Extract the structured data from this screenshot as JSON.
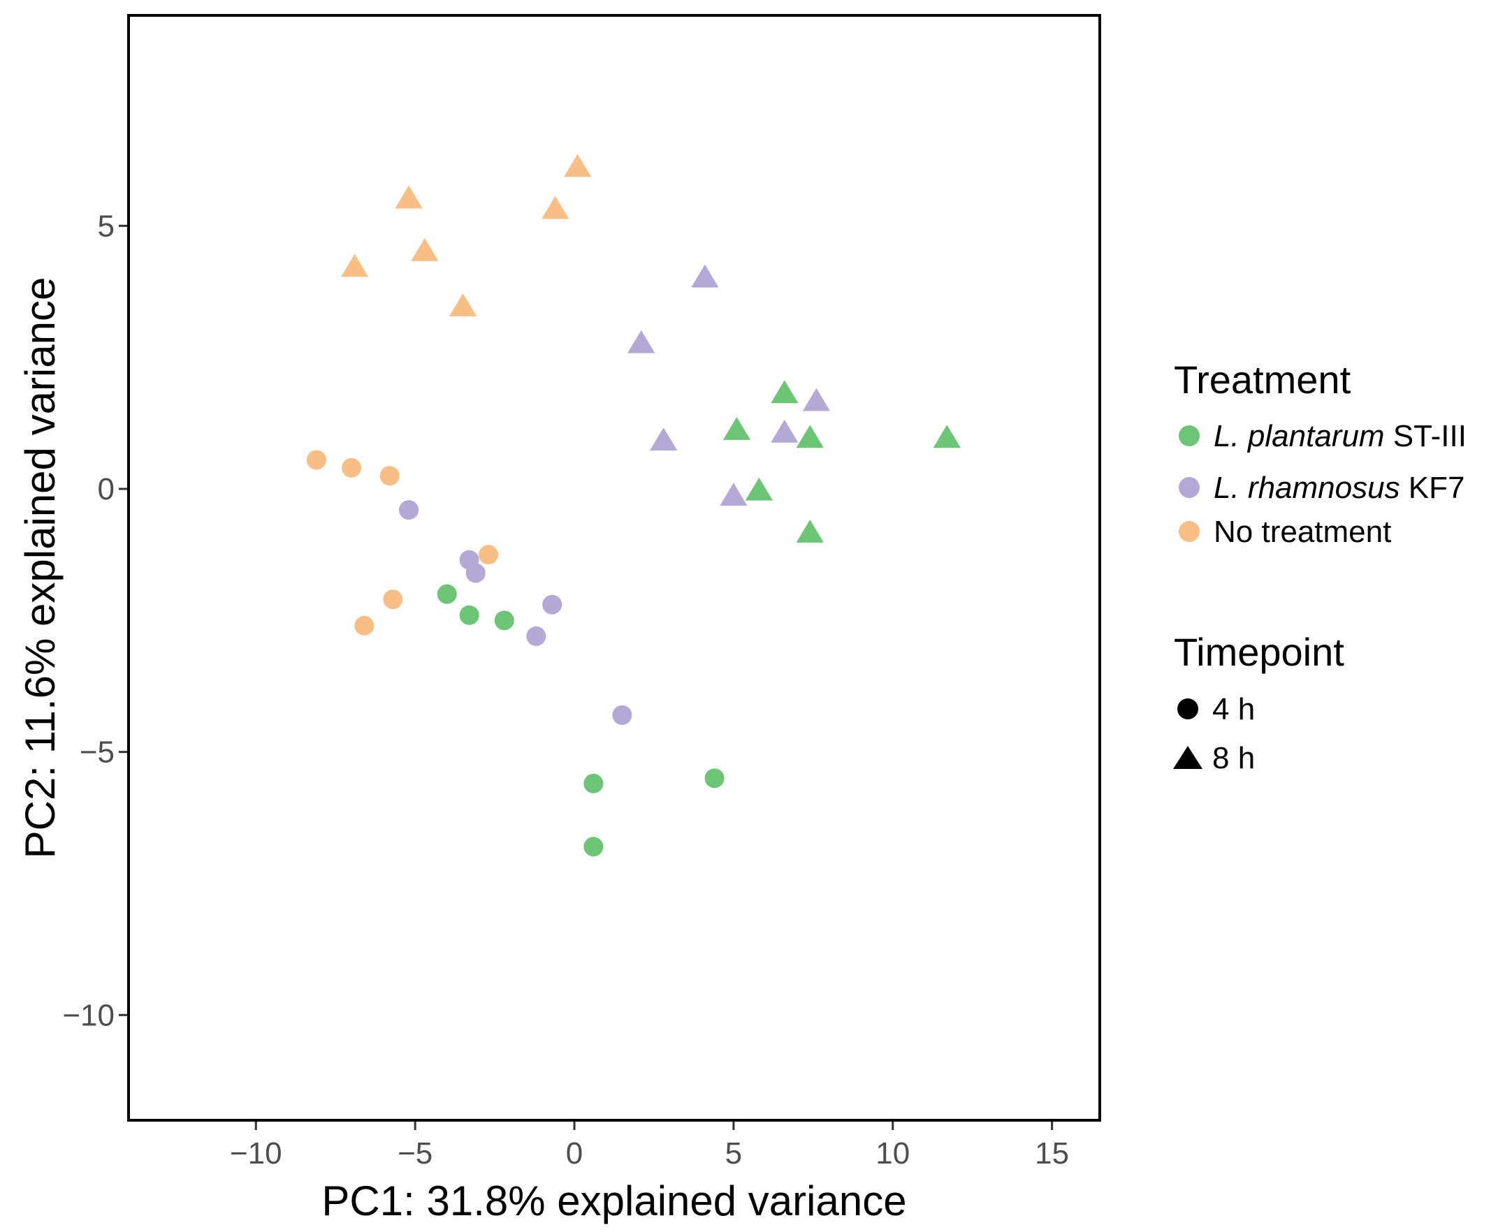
{
  "chart_data": {
    "type": "scatter",
    "title": "",
    "xlabel": "PC1: 31.8% explained variance",
    "ylabel": "PC2: 11.6% explained variance",
    "xlim": [
      -14,
      16.5
    ],
    "ylim": [
      -12,
      9
    ],
    "xticks": [
      -10,
      -5,
      0,
      5,
      10,
      15
    ],
    "xtick_labels": [
      "−10",
      "−5",
      "0",
      "5",
      "10",
      "15"
    ],
    "yticks": [
      5,
      0,
      -5,
      -10
    ],
    "ytick_labels": [
      "5",
      "0",
      "−5",
      "−10"
    ],
    "grid": false,
    "colors": {
      "plantarum": "#6cc574",
      "rhamnosus": "#b4a8d6",
      "none": "#f8be84",
      "legend_shape": "#000000"
    },
    "legend": {
      "position": "right",
      "treatment_title": "Treatment",
      "treatment_items": [
        {
          "key": "plantarum",
          "italic": "L. plantarum",
          "rest": " ST-III"
        },
        {
          "key": "rhamnosus",
          "italic": "L. rhamnosus",
          "rest": " KF7"
        },
        {
          "key": "none",
          "italic": "",
          "rest": "No treatment"
        }
      ],
      "timepoint_title": "Timepoint",
      "timepoint_items": [
        {
          "shape": "circle",
          "label": "4 h"
        },
        {
          "shape": "triangle",
          "label": "8 h"
        }
      ]
    },
    "series": [
      {
        "name": "L. plantarum ST-III 4 h",
        "treatment": "plantarum",
        "shape": "circle",
        "points": [
          [
            -4.0,
            -2.0
          ],
          [
            -3.3,
            -2.4
          ],
          [
            -2.2,
            -2.5
          ],
          [
            0.6,
            -5.6
          ],
          [
            4.4,
            -5.5
          ],
          [
            0.6,
            -6.8
          ]
        ]
      },
      {
        "name": "L. rhamnosus KF7 4 h",
        "treatment": "rhamnosus",
        "shape": "circle",
        "points": [
          [
            -5.2,
            -0.4
          ],
          [
            -3.3,
            -1.35
          ],
          [
            -3.1,
            -1.6
          ],
          [
            -0.7,
            -2.2
          ],
          [
            -1.2,
            -2.8
          ],
          [
            1.5,
            -4.3
          ]
        ]
      },
      {
        "name": "No treatment 4 h",
        "treatment": "none",
        "shape": "circle",
        "points": [
          [
            -8.1,
            0.55
          ],
          [
            -7.0,
            0.4
          ],
          [
            -5.8,
            0.25
          ],
          [
            -2.7,
            -1.25
          ],
          [
            -5.7,
            -2.1
          ],
          [
            -6.6,
            -2.6
          ]
        ]
      },
      {
        "name": "L. plantarum ST-III 8 h",
        "treatment": "plantarum",
        "shape": "triangle",
        "points": [
          [
            6.6,
            1.8
          ],
          [
            5.1,
            1.1
          ],
          [
            7.4,
            0.95
          ],
          [
            11.7,
            0.95
          ],
          [
            5.8,
            -0.05
          ],
          [
            7.4,
            -0.85
          ]
        ]
      },
      {
        "name": "L. rhamnosus KF7 8 h",
        "treatment": "rhamnosus",
        "shape": "triangle",
        "points": [
          [
            4.1,
            4.0
          ],
          [
            2.1,
            2.75
          ],
          [
            7.6,
            1.65
          ],
          [
            6.6,
            1.05
          ],
          [
            2.8,
            0.9
          ],
          [
            5.0,
            -0.15
          ]
        ]
      },
      {
        "name": "No treatment 8 h",
        "treatment": "none",
        "shape": "triangle",
        "points": [
          [
            0.1,
            6.1
          ],
          [
            -5.2,
            5.5
          ],
          [
            -0.6,
            5.3
          ],
          [
            -4.7,
            4.5
          ],
          [
            -6.9,
            4.2
          ],
          [
            -3.5,
            3.45
          ]
        ]
      }
    ]
  }
}
